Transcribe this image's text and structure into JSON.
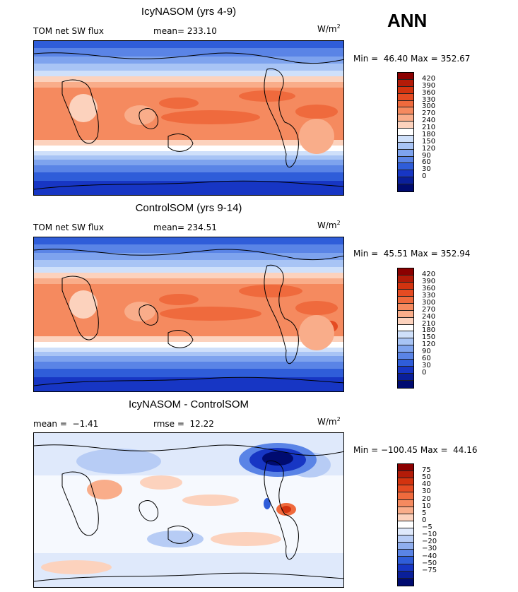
{
  "season": "ANN",
  "panels": [
    {
      "title": "IcyNASOM (yrs 4-9)",
      "left_label": "TOM net SW flux",
      "stat_label": "mean= 233.10",
      "units_base": "W/m",
      "units_exp": "2",
      "minmax": "Min =  46.40 Max = 352.67",
      "colorbar_levels": [
        "420",
        "390",
        "360",
        "330",
        "300",
        "270",
        "240",
        "210",
        "180",
        "150",
        "120",
        "90",
        "60",
        "30",
        "0"
      ],
      "colorbar_colors": [
        "#8b0000",
        "#b31b08",
        "#d3330f",
        "#e54b22",
        "#ef6a3d",
        "#f58a5f",
        "#f9ad8a",
        "#fcd2bd",
        "#ffffff",
        "#cfe0fa",
        "#a8c4f5",
        "#7ea3ee",
        "#5a84e6",
        "#2f5dd9",
        "#1736c4",
        "#0a1f9a",
        "#000b70"
      ]
    },
    {
      "title": "ControlSOM (yrs 9-14)",
      "left_label": "TOM net SW flux",
      "stat_label": "mean= 234.51",
      "units_base": "W/m",
      "units_exp": "2",
      "minmax": "Min =  45.51 Max = 352.94",
      "colorbar_levels": [
        "420",
        "390",
        "360",
        "330",
        "300",
        "270",
        "240",
        "210",
        "180",
        "150",
        "120",
        "90",
        "60",
        "30",
        "0"
      ],
      "colorbar_colors": [
        "#8b0000",
        "#b31b08",
        "#d3330f",
        "#e54b22",
        "#ef6a3d",
        "#f58a5f",
        "#f9ad8a",
        "#fcd2bd",
        "#ffffff",
        "#cfe0fa",
        "#a8c4f5",
        "#7ea3ee",
        "#5a84e6",
        "#2f5dd9",
        "#1736c4",
        "#0a1f9a",
        "#000b70"
      ]
    },
    {
      "title": "IcyNASOM - ControlSOM",
      "left_label": "mean =  −1.41",
      "stat_label": "rmse =  12.22",
      "units_base": "W/m",
      "units_exp": "2",
      "minmax": "Min = −100.45 Max =  44.16",
      "colorbar_levels": [
        "75",
        "50",
        "40",
        "30",
        "20",
        "10",
        "5",
        "0",
        "−5",
        "−10",
        "−20",
        "−30",
        "−40",
        "−50",
        "−75"
      ],
      "colorbar_colors": [
        "#8b0000",
        "#b31b08",
        "#d3330f",
        "#e54b22",
        "#ef6a3d",
        "#f58a5f",
        "#f9ad8a",
        "#fcd2bd",
        "#ffffff",
        "#dfe9fb",
        "#b7ccf5",
        "#8faeee",
        "#5a84e6",
        "#2f5dd9",
        "#1736c4",
        "#0a1f9a",
        "#000b70"
      ]
    }
  ]
}
